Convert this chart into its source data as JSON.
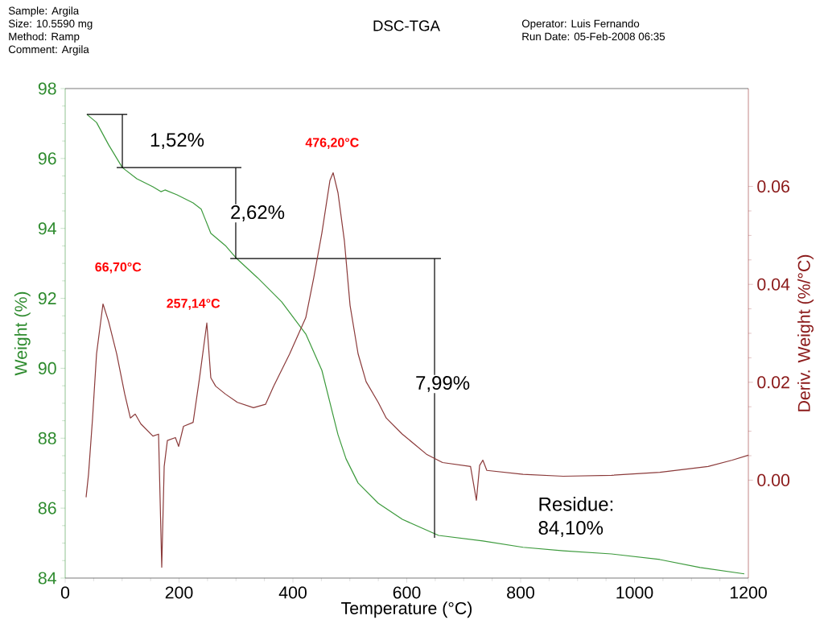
{
  "chart_data": {
    "type": "line",
    "title": "DSC-TGA",
    "xlabel": "Temperature (°C)",
    "ylabel": "Weight (%)",
    "y2label": "Deriv. Weight (%/°C)",
    "xlim": [
      0,
      1200
    ],
    "xticks": [
      0,
      200,
      400,
      600,
      800,
      1000,
      1200
    ],
    "ylim": [
      84,
      98
    ],
    "yticks": [
      84,
      86,
      88,
      90,
      92,
      94,
      96,
      98
    ],
    "y2lim": [
      -0.02,
      0.08
    ],
    "y2ticks": [
      {
        "value": 0,
        "label": "0.00"
      },
      {
        "value": 0.02,
        "label": "0.02"
      },
      {
        "value": 0.04,
        "label": "0.04"
      },
      {
        "value": 0.06,
        "label": "0.06"
      }
    ],
    "grid": false,
    "series": [
      {
        "color": "#3c9a3c",
        "x": [
          38.2,
          55.1,
          76.3,
          100.4,
          125.8,
          154.1,
          168.2,
          175.3,
          196.5,
          224.7,
          238.9,
          250.2,
          255.8,
          281.3,
          301.1,
          337.8,
          380.2,
          422.6,
          450.9,
          465.0,
          479.2,
          493.3,
          514.5,
          549.8,
          592.2,
          655.8,
          733.6,
          804.2,
          874.9,
          959.7,
          1044.5,
          1115.2,
          1192.9
        ],
        "values": [
          97.26,
          97.03,
          96.39,
          95.74,
          95.42,
          95.19,
          95.05,
          95.1,
          94.96,
          94.73,
          94.55,
          94.09,
          93.86,
          93.51,
          93.14,
          92.59,
          91.9,
          90.98,
          89.94,
          89.02,
          88.1,
          87.41,
          86.72,
          86.14,
          85.68,
          85.22,
          85.06,
          84.88,
          84.78,
          84.69,
          84.53,
          84.3,
          84.12
        ]
      },
      {
        "color": "#8b3a3a",
        "axis": "y2",
        "x": [
          36.7,
          41.0,
          48.1,
          55.1,
          66.4,
          76.3,
          90.5,
          104.6,
          114.5,
          123.0,
          132.9,
          154.1,
          164.0,
          169.6,
          173.9,
          179.5,
          193.6,
          199.3,
          207.8,
          224.7,
          236.0,
          248.8,
          255.8,
          264.3,
          281.3,
          302.5,
          330.7,
          351.9,
          366.1,
          394.3,
          422.6,
          436.7,
          450.9,
          465.0,
          470.7,
          479.2,
          490.5,
          500.4,
          514.5,
          528.6,
          549.8,
          563.9,
          592.2,
          634.6,
          662.9,
          712.0,
          722.3,
          728.0,
          733.6,
          740.6,
          804.2,
          874.9,
          959.7,
          1044.5,
          1129.3,
          1171.7,
          1200.0
        ],
        "values": [
          -0.0035,
          0.0012,
          0.0127,
          0.0258,
          0.036,
          0.0324,
          0.0258,
          0.0176,
          0.0127,
          0.0135,
          0.0115,
          0.009,
          0.0094,
          -0.0178,
          0.0028,
          0.0081,
          0.0087,
          0.0069,
          0.011,
          0.0118,
          0.0209,
          0.0321,
          0.0209,
          0.0192,
          0.0176,
          0.0159,
          0.0148,
          0.0155,
          0.0192,
          0.0258,
          0.0332,
          0.0414,
          0.0505,
          0.0612,
          0.0628,
          0.0587,
          0.0488,
          0.0357,
          0.0258,
          0.0201,
          0.0159,
          0.0127,
          0.0094,
          0.0053,
          0.0036,
          0.0028,
          -0.0041,
          0.003,
          0.0041,
          0.002,
          0.0012,
          0.0008,
          0.001,
          0.0016,
          0.0028,
          0.0041,
          0.0051
        ]
      },
      {
        "color": "#000000",
        "x": [
          38,
          109
        ],
        "values": [
          97.26,
          97.26
        ]
      },
      {
        "color": "#000000",
        "x": [
          100.4,
          100.4
        ],
        "values": [
          97.26,
          95.74
        ]
      },
      {
        "color": "#000000",
        "x": [
          90.5,
          309.5
        ],
        "values": [
          95.74,
          95.74
        ]
      },
      {
        "color": "#000000",
        "x": [
          299.6,
          299.6
        ],
        "values": [
          95.74,
          93.14
        ]
      },
      {
        "color": "#000000",
        "x": [
          290,
          660
        ],
        "values": [
          93.14,
          93.14
        ]
      },
      {
        "color": "#000000",
        "x": [
          648.8,
          648.8
        ],
        "values": [
          93.14,
          85.15
        ]
      }
    ],
    "annotations": [
      "Sample: Argila",
      "Size:  10.5590 mg",
      "Method: Ramp",
      "Comment: Argila",
      "Operator: Luis Fernando",
      "Run Date: 05-Feb-2008 06:35",
      "1,52%",
      "2,62%",
      "7,99%",
      "Residue: 84,10%",
      "66,70°C",
      "257,14°C",
      "476,20°C"
    ]
  }
}
